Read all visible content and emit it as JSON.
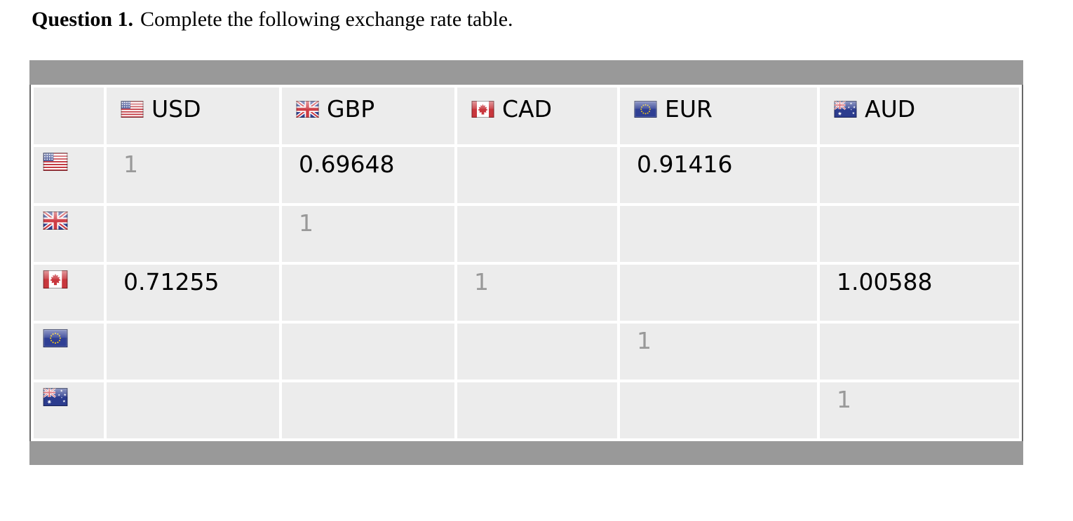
{
  "question": {
    "label": "Question 1.",
    "text": "Complete the following exchange rate table."
  },
  "table": {
    "columns": [
      {
        "id": "us",
        "code": "USD",
        "flag_icon": "us-flag-icon"
      },
      {
        "id": "gb",
        "code": "GBP",
        "flag_icon": "gb-flag-icon"
      },
      {
        "id": "ca",
        "code": "CAD",
        "flag_icon": "ca-flag-icon"
      },
      {
        "id": "eu",
        "code": "EUR",
        "flag_icon": "eu-flag-icon"
      },
      {
        "id": "au",
        "code": "AUD",
        "flag_icon": "au-flag-icon"
      }
    ],
    "rows": [
      {
        "id": "us",
        "flag_icon": "us-flag-icon",
        "cells": [
          {
            "value": "1",
            "muted": true
          },
          {
            "value": "0.69648"
          },
          {
            "value": ""
          },
          {
            "value": "0.91416"
          },
          {
            "value": ""
          }
        ]
      },
      {
        "id": "gb",
        "flag_icon": "gb-flag-icon",
        "cells": [
          {
            "value": ""
          },
          {
            "value": "1",
            "muted": true
          },
          {
            "value": ""
          },
          {
            "value": ""
          },
          {
            "value": ""
          }
        ]
      },
      {
        "id": "ca",
        "flag_icon": "ca-flag-icon",
        "cells": [
          {
            "value": "0.71255"
          },
          {
            "value": ""
          },
          {
            "value": "1",
            "muted": true
          },
          {
            "value": ""
          },
          {
            "value": "1.00588"
          }
        ]
      },
      {
        "id": "eu",
        "flag_icon": "eu-flag-icon",
        "cells": [
          {
            "value": ""
          },
          {
            "value": ""
          },
          {
            "value": ""
          },
          {
            "value": "1",
            "muted": true
          },
          {
            "value": ""
          }
        ]
      },
      {
        "id": "au",
        "flag_icon": "au-flag-icon",
        "cells": [
          {
            "value": ""
          },
          {
            "value": ""
          },
          {
            "value": ""
          },
          {
            "value": ""
          },
          {
            "value": "1",
            "muted": true
          }
        ]
      }
    ]
  },
  "colors": {
    "band": "#999999",
    "cell_bg": "#ececec",
    "muted_text": "#999999",
    "value_text": "#000000",
    "table_border": "#686868",
    "page_bg": "#ffffff"
  }
}
